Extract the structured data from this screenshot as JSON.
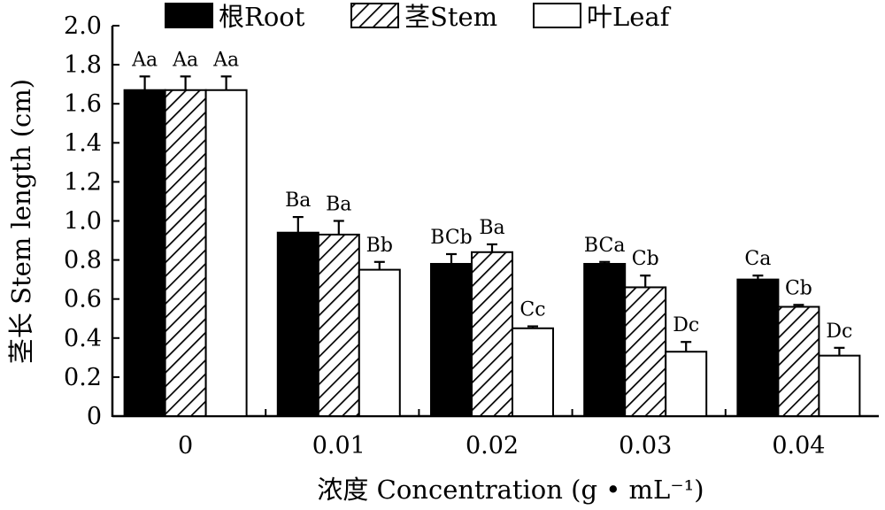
{
  "chart_data": {
    "type": "bar",
    "categories": [
      "0",
      "0.01",
      "0.02",
      "0.03",
      "0.04"
    ],
    "series": [
      {
        "name": "根Root",
        "fill": "solid",
        "values": [
          1.67,
          0.94,
          0.78,
          0.78,
          0.7
        ],
        "errors": [
          0.07,
          0.08,
          0.05,
          0.01,
          0.02
        ],
        "labels": [
          "Aa",
          "Ba",
          "BCb",
          "BCa",
          "Ca"
        ]
      },
      {
        "name": "茎Stem",
        "fill": "hatched",
        "values": [
          1.67,
          0.93,
          0.84,
          0.66,
          0.56
        ],
        "errors": [
          0.07,
          0.07,
          0.04,
          0.06,
          0.01
        ],
        "labels": [
          "Aa",
          "Ba",
          "Ba",
          "Cb",
          "Cb"
        ]
      },
      {
        "name": "叶Leaf",
        "fill": "open",
        "values": [
          1.67,
          0.75,
          0.45,
          0.33,
          0.31
        ],
        "errors": [
          0.07,
          0.04,
          0.01,
          0.05,
          0.04
        ],
        "labels": [
          "Aa",
          "Bb",
          "Cc",
          "Dc",
          "Dc"
        ]
      }
    ],
    "xlabel": "浓度 Concentration (g • mL⁻¹)",
    "ylabel": "茎长 Stem length (cm)",
    "ylim": [
      0,
      2.0
    ],
    "yticks": [
      "0",
      "0.2",
      "0.4",
      "0.6",
      "0.8",
      "1.0",
      "1.2",
      "1.4",
      "1.6",
      "1.8",
      "2.0"
    ],
    "grid": false,
    "legend": "top",
    "colors": {
      "solid": "#000000",
      "outline": "#000000",
      "background": "#ffffff"
    }
  }
}
